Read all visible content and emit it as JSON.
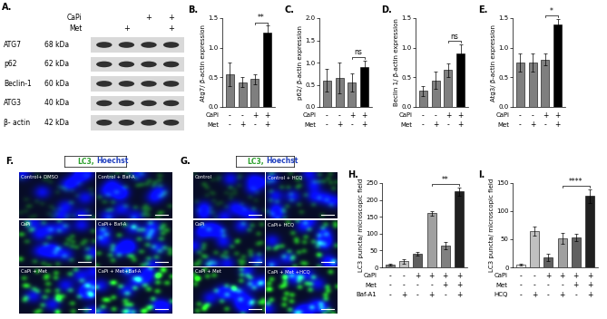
{
  "blot": {
    "panel": "A.",
    "treatment_rows": [
      {
        "name": "CaPi",
        "values": [
          null,
          null,
          "+",
          "+"
        ]
      },
      {
        "name": "Met",
        "values": [
          null,
          "+",
          null,
          "+"
        ]
      }
    ],
    "bands": [
      {
        "protein": "ATG7",
        "size": "68 kDa"
      },
      {
        "protein": "p62",
        "size": "62 kDa"
      },
      {
        "protein": "Beclin-1",
        "size": "60 kDa"
      },
      {
        "protein": "ATG3",
        "size": "40 kDa"
      },
      {
        "protein": "β- actin",
        "size": "42 kDa"
      }
    ]
  },
  "chart_data": [
    {
      "panel": "B.",
      "type": "bar",
      "y_label": "Atg7/ β-actin expression",
      "categories": [
        null,
        null,
        null,
        null
      ],
      "values": [
        0.55,
        0.42,
        0.47,
        1.25
      ],
      "errors": [
        0.2,
        0.08,
        0.08,
        0.12
      ],
      "colors": [
        "#7f7f7f",
        "#7f7f7f",
        "#7f7f7f",
        "#000000"
      ],
      "condition_rows": [
        {
          "name": "CaPi",
          "values": [
            "-",
            "-",
            "+",
            "+"
          ]
        },
        {
          "name": "Met",
          "values": [
            "-",
            "+",
            "-",
            "+"
          ]
        }
      ],
      "significance": [
        {
          "bars": [
            2,
            3
          ],
          "label": "**"
        }
      ],
      "ylim": [
        0,
        1.5
      ],
      "yticks": [
        {
          "value": 0,
          "label": "0.0"
        },
        {
          "value": 0.5,
          "label": "0.5"
        },
        {
          "value": 1,
          "label": "1.0"
        },
        {
          "value": 1.5,
          "label": "1.5"
        }
      ]
    },
    {
      "panel": "C.",
      "type": "bar",
      "y_label": "p62/ β-actin expression",
      "categories": [
        null,
        null,
        null,
        null
      ],
      "values": [
        0.6,
        0.65,
        0.55,
        0.9
      ],
      "errors": [
        0.25,
        0.35,
        0.2,
        0.15
      ],
      "colors": [
        "#7f7f7f",
        "#7f7f7f",
        "#7f7f7f",
        "#000000"
      ],
      "condition_rows": [
        {
          "name": "CaPi",
          "values": [
            "-",
            "-",
            "+",
            "+"
          ]
        },
        {
          "name": "Met",
          "values": [
            "-",
            "+",
            "-",
            "+"
          ]
        }
      ],
      "significance": [
        {
          "bars": [
            2,
            3
          ],
          "label": "ns"
        }
      ],
      "ylim": [
        0,
        2
      ],
      "yticks": [
        {
          "value": 0,
          "label": "0.0"
        },
        {
          "value": 0.5,
          "label": "0.5"
        },
        {
          "value": 1,
          "label": "1.0"
        },
        {
          "value": 1.5,
          "label": "1.5"
        },
        {
          "value": 2,
          "label": "2.0"
        }
      ]
    },
    {
      "panel": "D.",
      "type": "bar",
      "y_label": "Beclin 1/ β-actin expression",
      "categories": [
        null,
        null,
        null,
        null
      ],
      "values": [
        0.27,
        0.45,
        0.62,
        0.9
      ],
      "errors": [
        0.08,
        0.15,
        0.12,
        0.15
      ],
      "colors": [
        "#7f7f7f",
        "#7f7f7f",
        "#7f7f7f",
        "#000000"
      ],
      "condition_rows": [
        {
          "name": "CaPi",
          "values": [
            "-",
            "-",
            "+",
            "+"
          ]
        },
        {
          "name": "Met",
          "values": [
            "-",
            "+",
            "-",
            "+"
          ]
        }
      ],
      "significance": [
        {
          "bars": [
            2,
            3
          ],
          "label": "ns"
        }
      ],
      "ylim": [
        0,
        1.5
      ],
      "yticks": [
        {
          "value": 0,
          "label": "0.0"
        },
        {
          "value": 0.5,
          "label": "0.5"
        },
        {
          "value": 1,
          "label": "1.0"
        },
        {
          "value": 1.5,
          "label": "1.5"
        }
      ]
    },
    {
      "panel": "E.",
      "type": "bar",
      "y_label": "Atg3/ β-actin expression",
      "categories": [
        null,
        null,
        null,
        null
      ],
      "values": [
        0.75,
        0.75,
        0.8,
        1.4
      ],
      "errors": [
        0.15,
        0.15,
        0.1,
        0.08
      ],
      "colors": [
        "#7f7f7f",
        "#7f7f7f",
        "#7f7f7f",
        "#000000"
      ],
      "condition_rows": [
        {
          "name": "CaPi",
          "values": [
            "-",
            "-",
            "+",
            "+"
          ]
        },
        {
          "name": "Met",
          "values": [
            "-",
            "+",
            "-",
            "+"
          ]
        }
      ],
      "significance": [
        {
          "bars": [
            2,
            3
          ],
          "label": "*"
        }
      ],
      "ylim": [
        0,
        1.5
      ],
      "yticks": [
        {
          "value": 0,
          "label": "0.0"
        },
        {
          "value": 0.5,
          "label": "0.5"
        },
        {
          "value": 1,
          "label": "1.0"
        },
        {
          "value": 1.5,
          "label": "1.5"
        }
      ]
    },
    {
      "panel": "H.",
      "type": "bar",
      "y_label": "LC3 puncta/ microscopic field",
      "categories": [
        null,
        null,
        null,
        null,
        null,
        null
      ],
      "values": [
        8,
        18,
        40,
        160,
        65,
        225
      ],
      "errors": [
        2,
        7,
        5,
        6,
        10,
        12
      ],
      "colors": [
        "#808080",
        "#c0c0c0",
        "#606060",
        "#a0a0a0",
        "#808080",
        "#202020"
      ],
      "condition_rows": [
        {
          "name": "CaPi",
          "values": [
            "-",
            "-",
            "+",
            "+",
            "+",
            "+"
          ]
        },
        {
          "name": "Met",
          "values": [
            "-",
            "-",
            "-",
            "-",
            "+",
            "+"
          ]
        },
        {
          "name": "Baf-A1",
          "values": [
            "-",
            "+",
            "-",
            "+",
            "-",
            "+"
          ]
        }
      ],
      "significance": [
        {
          "bars": [
            3,
            5
          ],
          "label": "**"
        }
      ],
      "ylim": [
        0,
        250
      ],
      "yticks": [
        0,
        50,
        100,
        150,
        200,
        250
      ]
    },
    {
      "panel": "I.",
      "type": "bar",
      "y_label": "LC3 puncta/ microscopic field",
      "categories": [
        null,
        null,
        null,
        null,
        null,
        null
      ],
      "values": [
        5,
        65,
        18,
        52,
        53,
        127
      ],
      "errors": [
        2,
        8,
        7,
        10,
        7,
        12
      ],
      "colors": [
        "#ffffff",
        "#c0c0c0",
        "#606060",
        "#a0a0a0",
        "#606060",
        "#202020"
      ],
      "condition_rows": [
        {
          "name": "CaPi",
          "values": [
            "-",
            "-",
            "+",
            "+",
            "+",
            "+"
          ]
        },
        {
          "name": "Met",
          "values": [
            "-",
            "-",
            "-",
            "-",
            "+",
            "+"
          ]
        },
        {
          "name": "HCQ",
          "values": [
            "-",
            "+",
            "-",
            "+",
            "-",
            "+"
          ]
        }
      ],
      "significance": [
        {
          "bars": [
            3,
            5
          ],
          "label": "****"
        }
      ],
      "ylim": [
        0,
        150
      ],
      "yticks": [
        0,
        50,
        100,
        150
      ]
    }
  ],
  "micrographs": [
    {
      "panel": "F.",
      "header": [
        {
          "text": "LC3,",
          "color": "#2ca02c"
        },
        {
          "text": "Hoechst",
          "color": "#1f3fbf"
        }
      ],
      "images": [
        "Control+ DMSO",
        "Control + Baf-A",
        "CaPi",
        "CaPi+ Baf-A",
        "CaPi + Met",
        "CaPi + Met+Baf-A"
      ]
    },
    {
      "panel": "G.",
      "header": [
        {
          "text": "LC3,",
          "color": "#2ca02c"
        },
        {
          "text": "Hoechst",
          "color": "#1f3fbf"
        }
      ],
      "images": [
        "Control",
        "Control + HCQ",
        "CaPi",
        "CaPi+ HCQ",
        "CaPi + Met",
        "CaPi + Met +HCQ"
      ]
    }
  ]
}
